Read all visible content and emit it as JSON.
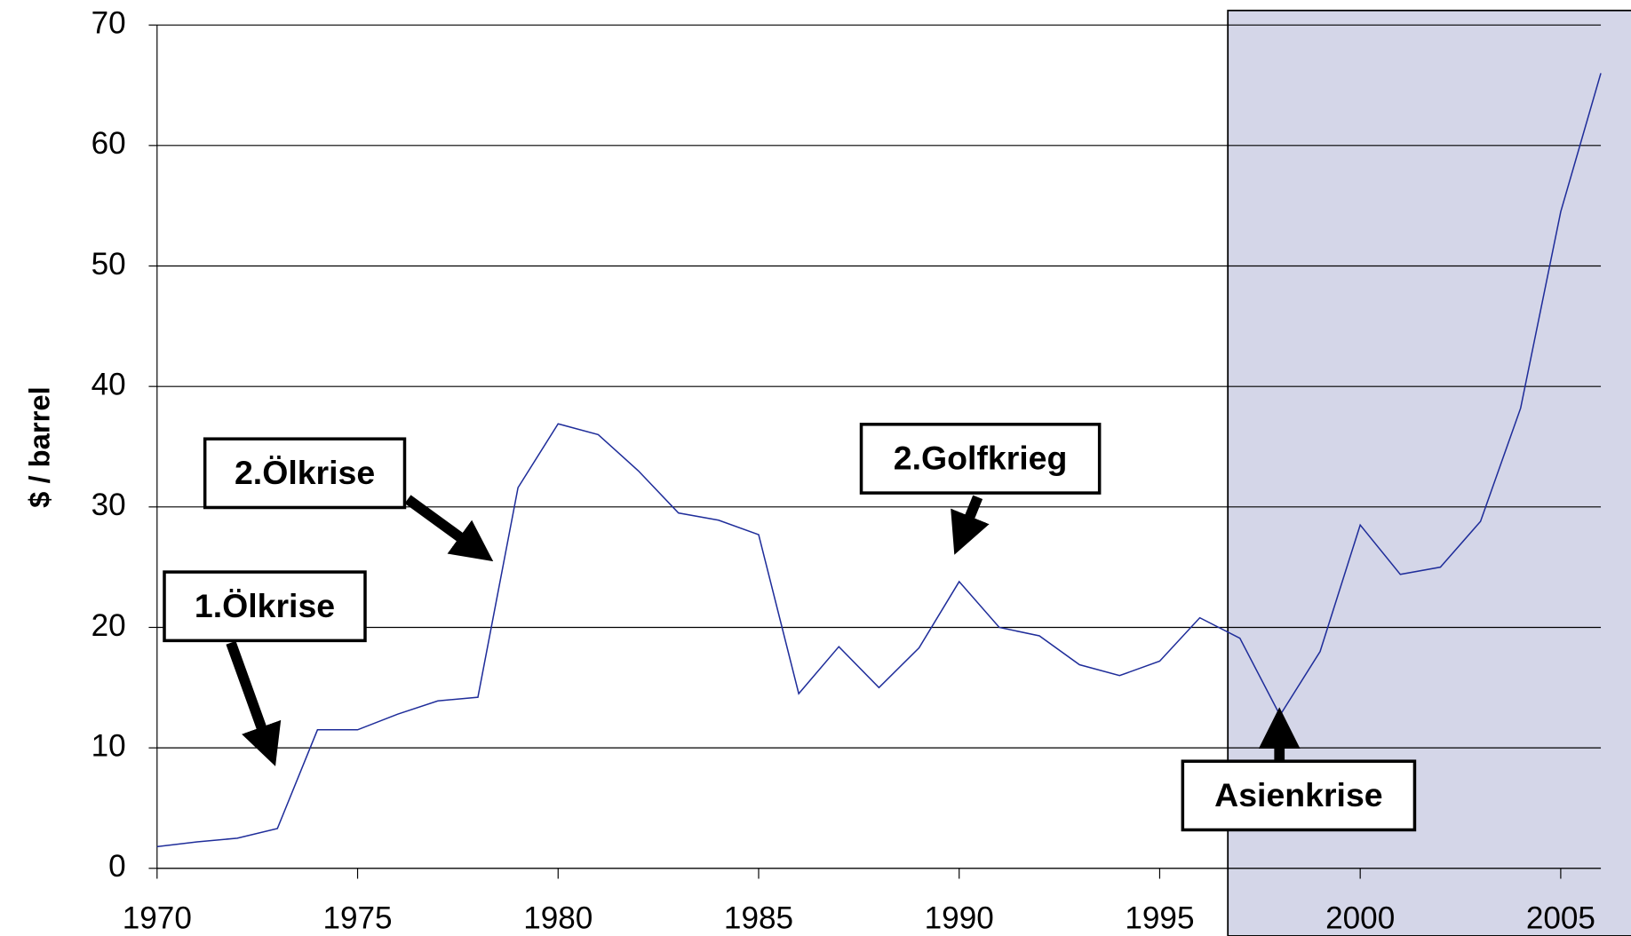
{
  "chart_data": {
    "type": "line",
    "y_label": "$ / barrel",
    "x": [
      1970,
      1971,
      1972,
      1973,
      1974,
      1975,
      1976,
      1977,
      1978,
      1979,
      1980,
      1981,
      1982,
      1983,
      1984,
      1985,
      1986,
      1987,
      1988,
      1989,
      1990,
      1991,
      1992,
      1993,
      1994,
      1995,
      1996,
      1997,
      1998,
      1999,
      2000,
      2001,
      2002,
      2003,
      2004,
      2005,
      2006
    ],
    "series": [
      {
        "color": "#1f2d9a",
        "values": [
          1.8,
          2.2,
          2.5,
          3.3,
          11.5,
          11.5,
          12.8,
          13.9,
          14.2,
          31.6,
          36.9,
          36.0,
          33.0,
          29.5,
          28.9,
          27.7,
          14.5,
          18.4,
          15.0,
          18.3,
          23.8,
          20.0,
          19.3,
          16.9,
          16.0,
          17.2,
          20.8,
          19.1,
          12.7,
          18.0,
          28.5,
          24.4,
          25.0,
          28.8,
          38.2,
          54.5,
          66.0
        ]
      }
    ],
    "xlim": [
      1970,
      2006
    ],
    "xticks": [
      1970,
      1975,
      1980,
      1985,
      1990,
      1995,
      2000,
      2005
    ],
    "ylim": [
      0,
      70
    ],
    "yticks": [
      0,
      10,
      20,
      30,
      40,
      50,
      60,
      70
    ],
    "grid": true,
    "shaded_region": {
      "x": [
        1996.7,
        2006.8
      ],
      "color": "#d4d6e8"
    },
    "annotations": [
      {
        "text": "1.Ölkrise"
      },
      {
        "text": "2.Ölkrise"
      },
      {
        "text": "2.Golfkrieg"
      },
      {
        "text": "Asienkrise"
      }
    ]
  }
}
